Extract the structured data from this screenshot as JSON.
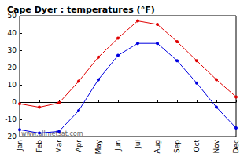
{
  "chart_data": {
    "type": "line",
    "title": "Cape Dyer : temperatures (°F)",
    "categories": [
      "Jan",
      "Feb",
      "Mar",
      "Apr",
      "May",
      "Jun",
      "Jul",
      "Aug",
      "Sep",
      "Oct",
      "Nov",
      "Dec"
    ],
    "series": [
      {
        "color": "#e00000",
        "marker": "circle",
        "values": [
          -1,
          -3,
          -0.5,
          12,
          26,
          37,
          47,
          45,
          35,
          24,
          13,
          3
        ]
      },
      {
        "color": "#0000e0",
        "marker": "circle",
        "values": [
          -16,
          -18,
          -17,
          -5,
          13,
          27,
          34,
          34,
          24,
          11,
          -3,
          -15
        ]
      }
    ],
    "ylim": [
      -20,
      50
    ],
    "yticks": [
      -20,
      -10,
      0,
      10,
      20,
      30,
      40,
      50
    ],
    "grid": false,
    "annotation": "www.allmetsat.com"
  }
}
